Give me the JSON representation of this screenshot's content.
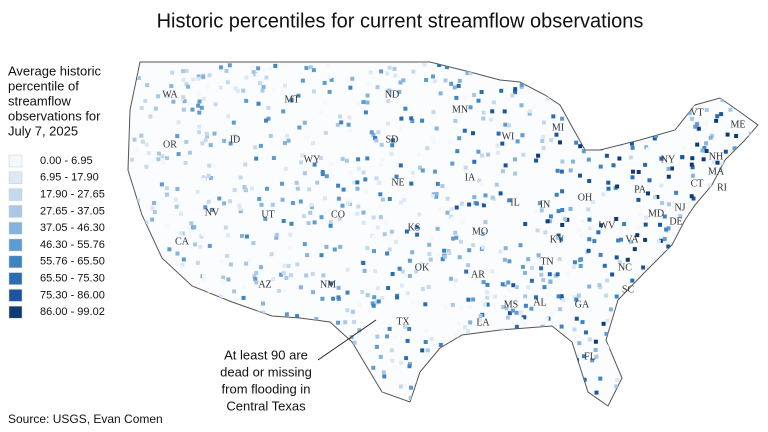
{
  "title": "Historic percentiles for current streamflow observations",
  "legend": {
    "title": [
      "Average historic",
      "percentile of",
      "streamflow",
      "observations for",
      "July 7, 2025"
    ],
    "items": [
      {
        "label": "0.00 - 6.95",
        "color": "#f4f7fc"
      },
      {
        "label": "6.95 - 17.90",
        "color": "#dce8f5"
      },
      {
        "label": "17.90 - 27.65",
        "color": "#c5d9ee"
      },
      {
        "label": "27.65 - 37.05",
        "color": "#a9c8e5"
      },
      {
        "label": "37.05 - 46.30",
        "color": "#86b3dc"
      },
      {
        "label": "46.30 - 55.76",
        "color": "#5e9bd0"
      },
      {
        "label": "55.76 - 65.50",
        "color": "#3f83c3"
      },
      {
        "label": "65.50 - 75.30",
        "color": "#2a6db3"
      },
      {
        "label": "75.30 - 86.00",
        "color": "#1b559c"
      },
      {
        "label": "86.00 - 99.02",
        "color": "#0e3a75"
      }
    ]
  },
  "states": [
    "WA",
    "OR",
    "CA",
    "ID",
    "NV",
    "MT",
    "WY",
    "UT",
    "AZ",
    "CO",
    "NM",
    "ND",
    "SD",
    "NE",
    "KS",
    "OK",
    "TX",
    "MN",
    "IA",
    "MO",
    "AR",
    "LA",
    "WI",
    "IL",
    "MS",
    "MI",
    "IN",
    "KY",
    "TN",
    "AL",
    "OH",
    "GA",
    "FL",
    "SC",
    "NC",
    "VA",
    "WV",
    "PA",
    "NY",
    "VT",
    "NH",
    "ME",
    "MA",
    "CT",
    "RI",
    "NJ",
    "DE",
    "MD"
  ],
  "annotation": [
    "At least 90 are",
    "dead or missing",
    "from flooding in",
    "Central Texas"
  ],
  "source": "Source: USGS, Evan Comen"
}
